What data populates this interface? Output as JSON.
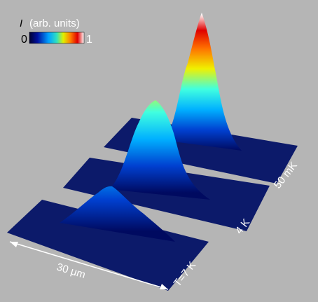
{
  "colorbar": {
    "symbol": "I",
    "label": "(arb. units)",
    "min_label": "0",
    "max_label": "1"
  },
  "surfaces": [
    {
      "label": "T=7 K"
    },
    {
      "label": "4 K"
    },
    {
      "label": "50 mK"
    }
  ],
  "scale_bar": {
    "label": "30 μm"
  }
}
